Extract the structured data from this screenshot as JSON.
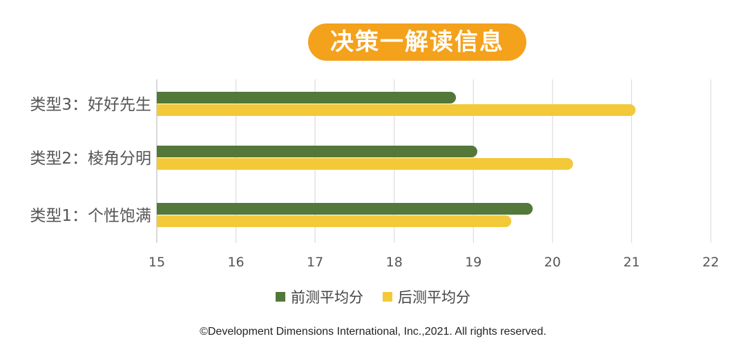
{
  "title": "决策一解读信息",
  "chart_data": {
    "type": "bar",
    "orientation": "horizontal",
    "categories": [
      "类型1：个性饱满",
      "类型2：棱角分明",
      "类型3：好好先生"
    ],
    "series": [
      {
        "name": "前测平均分",
        "color": "#53783a",
        "values": [
          19.75,
          19.05,
          18.78
        ]
      },
      {
        "name": "后测平均分",
        "color": "#f3c93a",
        "values": [
          19.48,
          20.26,
          21.05
        ]
      }
    ],
    "xlim": [
      15,
      22
    ],
    "xticks": [
      "15",
      "16",
      "17",
      "18",
      "19",
      "20",
      "21",
      "22"
    ],
    "grid": true,
    "legend_position": "bottom"
  },
  "copyright": "©Development Dimensions International, Inc.,2021. All rights reserved."
}
